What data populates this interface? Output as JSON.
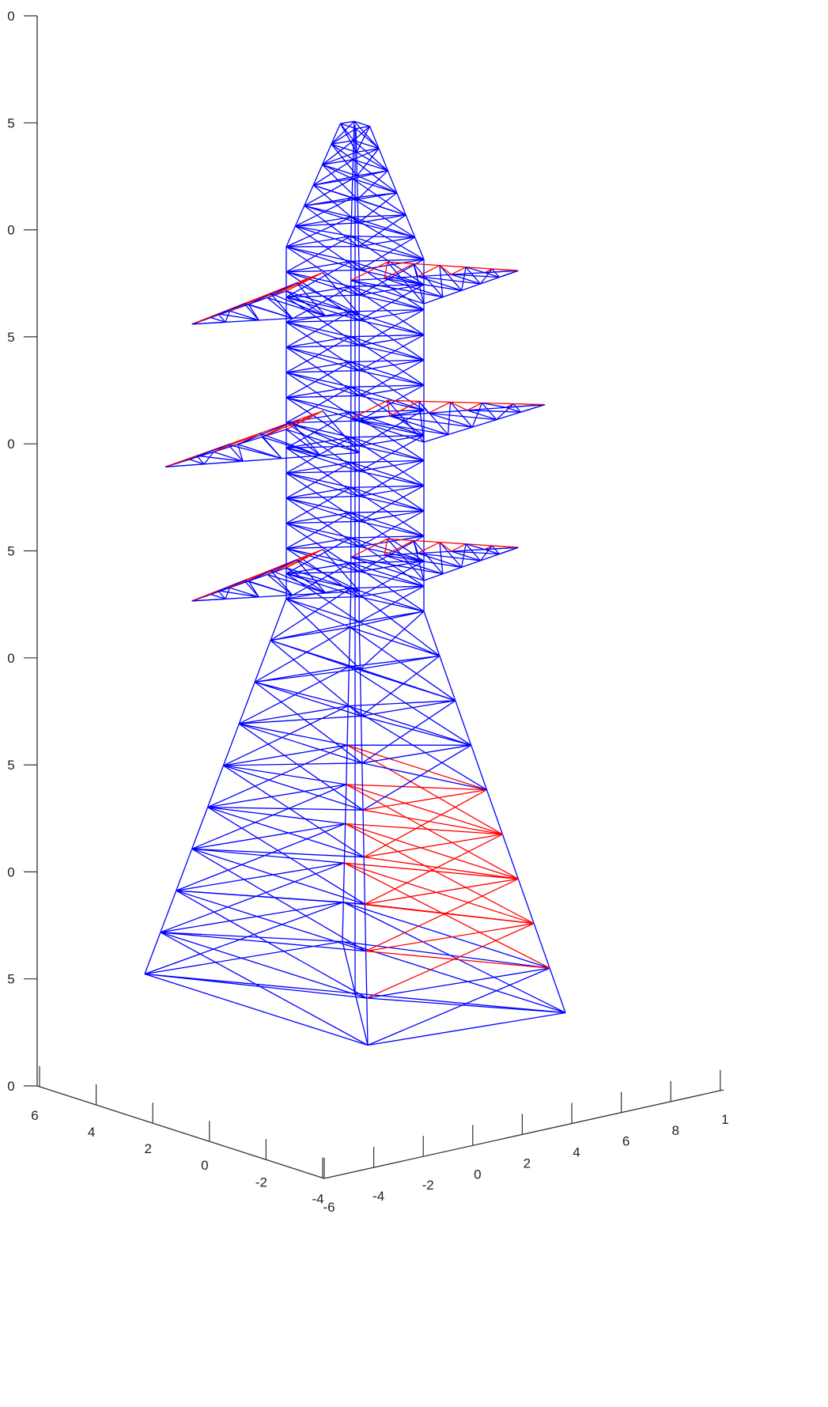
{
  "axes": {
    "z_ticks": [
      "0",
      "5",
      "0",
      "5",
      "0",
      "5",
      "0",
      "5",
      "0",
      "5",
      "0"
    ],
    "y_ticks": [
      "6",
      "4",
      "2",
      "0",
      "-2",
      "-4"
    ],
    "x_ticks": [
      "-6",
      "-4",
      "-2",
      "0",
      "2",
      "4",
      "6",
      "8",
      "1"
    ]
  }
}
